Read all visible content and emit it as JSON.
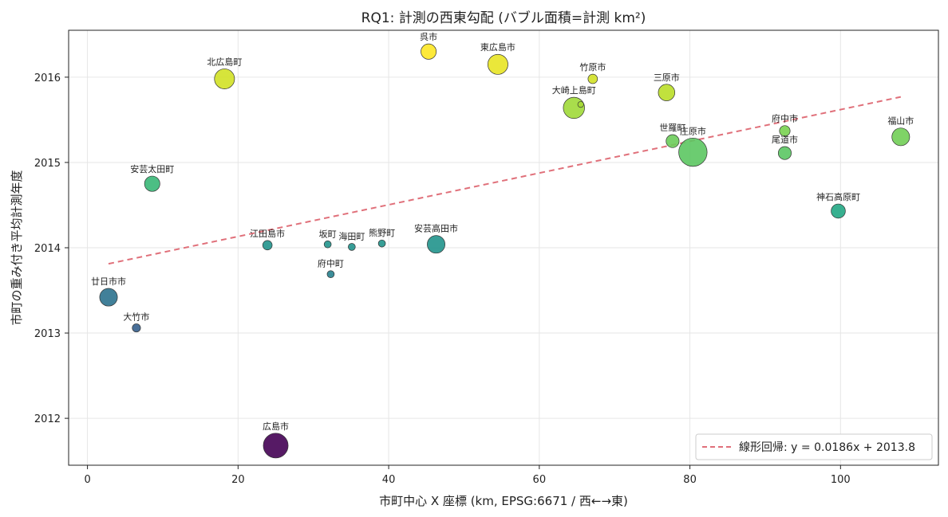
{
  "chart_data": {
    "type": "scatter",
    "title": "RQ1: 計測の西東勾配 (バブル面積=計測 km²)",
    "xlabel": "市町中心 X 座標 (km, EPSG:6671 / 西←→東)",
    "ylabel": "市町の重み付き平均計測年度",
    "xlim": [
      -2.5,
      113
    ],
    "ylim": [
      2011.45,
      2016.55
    ],
    "xticks": [
      0,
      20,
      40,
      60,
      80,
      100
    ],
    "yticks": [
      2012,
      2013,
      2014,
      2015,
      2016
    ],
    "xtick_labels": [
      "0",
      "20",
      "40",
      "60",
      "80",
      "100"
    ],
    "ytick_labels": [
      "2012",
      "2013",
      "2014",
      "2015",
      "2016"
    ],
    "grid": true,
    "legend_position": "bottom-right",
    "colormap": "viridis",
    "regression": {
      "label": "線形回帰: y = 0.0186x + 2013.8",
      "slope": 0.0186,
      "intercept": 2013.76,
      "x_range": [
        2.8,
        108
      ],
      "color": "#e0707a"
    },
    "points": [
      {
        "name": "広島市",
        "x": 25.0,
        "y": 2011.68,
        "size": 21
      },
      {
        "name": "廿日市市",
        "x": 2.8,
        "y": 2013.42,
        "size": 15
      },
      {
        "name": "大竹市",
        "x": 6.5,
        "y": 2013.06,
        "size": 7
      },
      {
        "name": "安芸太田町",
        "x": 8.6,
        "y": 2014.75,
        "size": 13
      },
      {
        "name": "北広島町",
        "x": 18.2,
        "y": 2015.98,
        "size": 17
      },
      {
        "name": "江田島市",
        "x": 23.9,
        "y": 2014.03,
        "size": 8
      },
      {
        "name": "坂町",
        "x": 31.9,
        "y": 2014.04,
        "size": 6
      },
      {
        "name": "府中町",
        "x": 32.3,
        "y": 2013.69,
        "size": 6
      },
      {
        "name": "海田町",
        "x": 35.1,
        "y": 2014.01,
        "size": 6
      },
      {
        "name": "熊野町",
        "x": 39.1,
        "y": 2014.05,
        "size": 6
      },
      {
        "name": "呉市",
        "x": 45.3,
        "y": 2016.3,
        "size": 13
      },
      {
        "name": "安芸高田市",
        "x": 46.3,
        "y": 2014.04,
        "size": 15
      },
      {
        "name": "東広島市",
        "x": 54.5,
        "y": 2016.15,
        "size": 17
      },
      {
        "name": "大崎上島町",
        "x": 64.6,
        "y": 2015.64,
        "size": 18
      },
      {
        "name": "竹原市",
        "x": 67.1,
        "y": 2015.98,
        "size": 8
      },
      {
        "name": "三原市",
        "x": 76.9,
        "y": 2015.82,
        "size": 14
      },
      {
        "name": "世羅町",
        "x": 77.7,
        "y": 2015.25,
        "size": 11
      },
      {
        "name": "庄原市",
        "x": 80.4,
        "y": 2015.12,
        "size": 24
      },
      {
        "name": "府中市",
        "x": 92.6,
        "y": 2015.37,
        "size": 9
      },
      {
        "name": "尾道市",
        "x": 92.6,
        "y": 2015.11,
        "size": 11
      },
      {
        "name": "神石高原町",
        "x": 99.7,
        "y": 2014.43,
        "size": 12
      },
      {
        "name": "福山市",
        "x": 108.0,
        "y": 2015.3,
        "size": 15
      },
      {
        "name": "大崎上島町（小）",
        "x": 65.5,
        "y": 2015.68,
        "size": 5
      }
    ]
  },
  "extra_labels": [
    {
      "text": "大崎上島町",
      "ref": 13
    }
  ]
}
